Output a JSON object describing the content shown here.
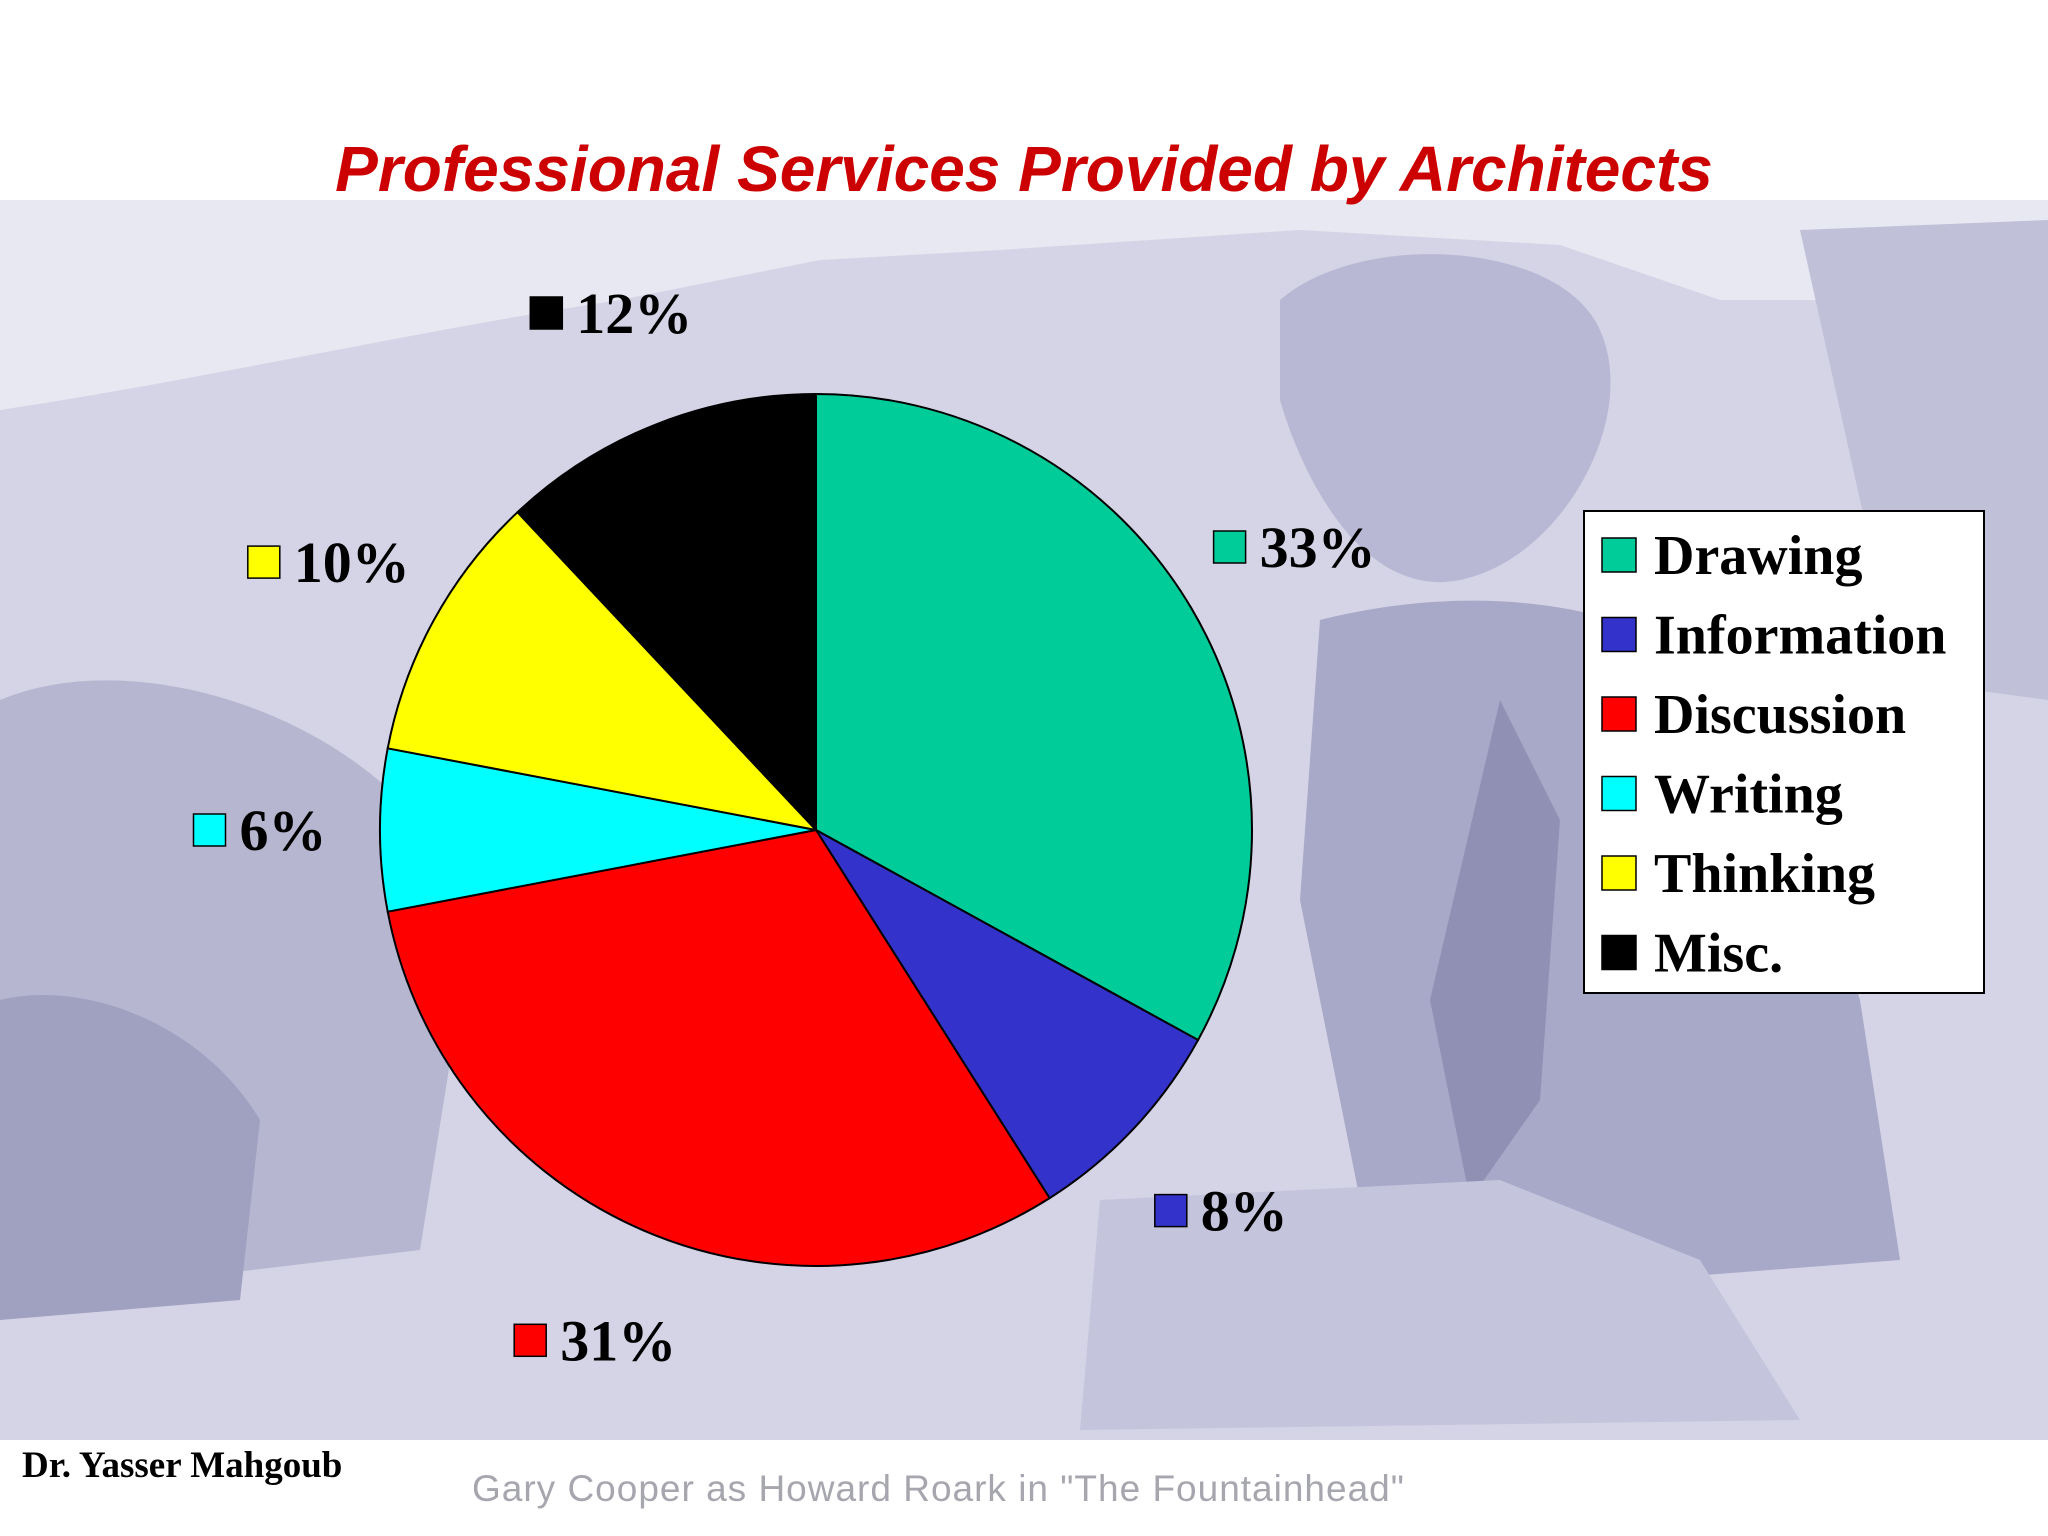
{
  "slide": {
    "author": "Dr. Yasser Mahgoub",
    "photo_caption": "Gary Cooper as Howard Roark in \"The Fountainhead\""
  },
  "chart_data": {
    "type": "pie",
    "title": "Professional Services Provided by Architects",
    "categories": [
      "Drawing",
      "Information",
      "Discussion",
      "Writing",
      "Thinking",
      "Misc."
    ],
    "values": [
      33,
      8,
      31,
      6,
      10,
      12
    ],
    "labels": [
      "33%",
      "8%",
      "31%",
      "6%",
      "10%",
      "12%"
    ],
    "colors": [
      "#00cc99",
      "#3333cc",
      "#ff0000",
      "#00ffff",
      "#ffff00",
      "#000000"
    ],
    "start": "12 o'clock",
    "direction": "clockwise",
    "legend": "right"
  }
}
